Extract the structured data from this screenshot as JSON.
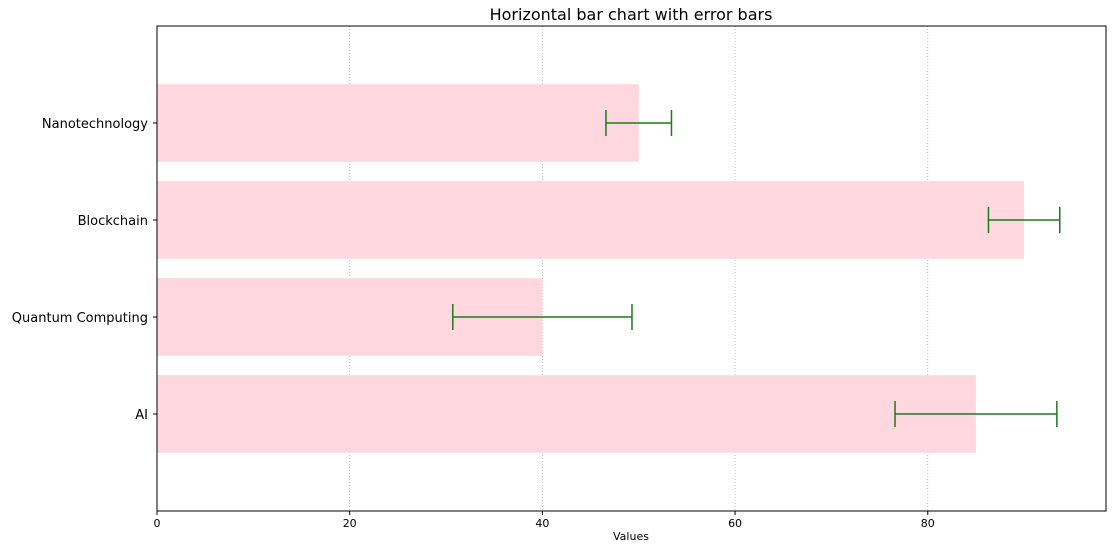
{
  "chart_data": {
    "type": "bar",
    "orientation": "horizontal",
    "title": "Horizontal bar chart with error bars",
    "xlabel": "Values",
    "ylabel": "",
    "categories": [
      "AI",
      "Quantum Computing",
      "Blockchain",
      "Nanotechnology"
    ],
    "values": [
      85,
      40,
      90,
      50
    ],
    "errors": [
      8.4,
      9.3,
      3.7,
      3.4
    ],
    "xlim": [
      0,
      98.5
    ],
    "xticks": [
      0,
      20,
      40,
      60,
      80
    ],
    "grid": "x-dotted",
    "bar_color": "#ffd7df",
    "error_color": "#1b7a1b"
  }
}
